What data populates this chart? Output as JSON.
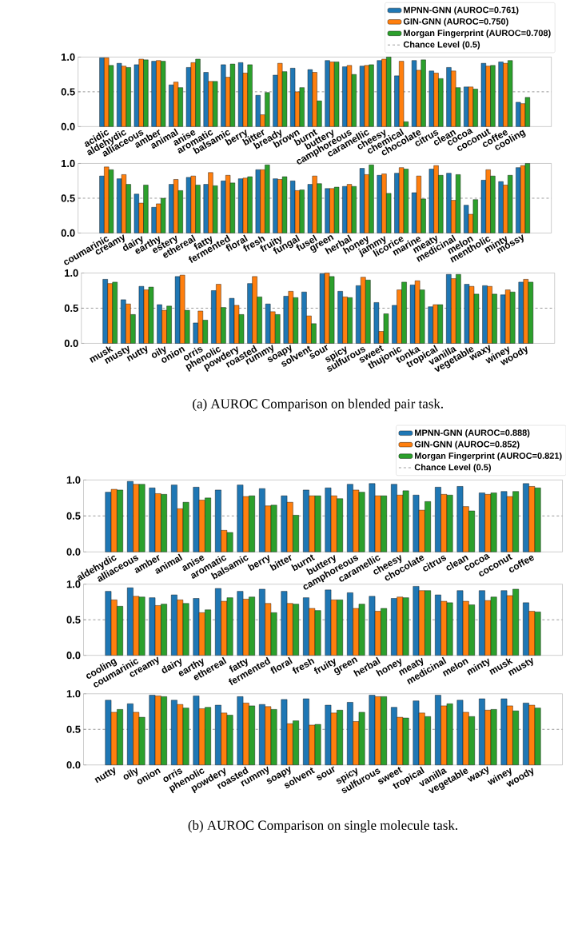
{
  "chart_data": [
    {
      "type": "bar",
      "legend": "top right",
      "categories": [
        "acidic",
        "aldehydic",
        "alliaceous",
        "amber",
        "animal",
        "anise",
        "aromatic",
        "balsamic",
        "berry",
        "bitter",
        "bready",
        "brown",
        "burnt",
        "buttery",
        "camphoreous",
        "caramellic",
        "cheesy",
        "chemical",
        "chocolate",
        "citrus",
        "clean",
        "cocoa",
        "coconut",
        "coffee",
        "cooling"
      ],
      "series": [
        {
          "name": "MPNN-GNN (AUROC=0.761)",
          "color": "#1f77b4",
          "values": [
            0.99,
            0.91,
            0.89,
            0.94,
            0.6,
            0.85,
            0.78,
            0.89,
            0.92,
            0.45,
            0.74,
            0.84,
            0.82,
            0.95,
            0.86,
            0.87,
            0.95,
            0.73,
            0.95,
            0.8,
            0.85,
            0.57,
            0.91,
            0.93,
            0.35
          ]
        },
        {
          "name": "GIN-GNN (AUROC=0.750)",
          "color": "#ff7f0e",
          "values": [
            0.99,
            0.87,
            0.97,
            0.95,
            0.64,
            0.92,
            0.65,
            0.71,
            0.77,
            0.17,
            0.91,
            0.5,
            0.78,
            0.93,
            0.88,
            0.88,
            0.97,
            0.94,
            0.81,
            0.77,
            0.8,
            0.57,
            0.87,
            0.91,
            0.33
          ]
        },
        {
          "name": "Morgan Fingerprint (AUROC=0.708)",
          "color": "#2ca02c",
          "values": [
            0.88,
            0.85,
            0.96,
            0.94,
            0.56,
            0.97,
            0.65,
            0.9,
            0.89,
            0.49,
            0.79,
            0.56,
            0.37,
            0.93,
            0.75,
            0.89,
            1.0,
            0.07,
            0.96,
            0.69,
            0.56,
            0.54,
            0.88,
            0.95,
            0.42
          ]
        }
      ],
      "ylim": [
        0,
        1
      ],
      "yticks": [
        {
          "value": 0,
          "label": "0.0"
        },
        {
          "value": 0.5,
          "label": "0.5"
        },
        {
          "value": 1,
          "label": "1.0"
        }
      ],
      "ref_lines": [
        {
          "axis": "y",
          "value": 0.5,
          "label": "Chance Level (0.5)",
          "color": "#808080",
          "line_style": "dashed"
        }
      ]
    },
    {
      "type": "bar",
      "categories": [
        "coumarinic",
        "creamy",
        "dairy",
        "earthy",
        "estery",
        "ethereal",
        "fatty",
        "fermented",
        "floral",
        "fresh",
        "fruity",
        "fungal",
        "fusel",
        "green",
        "herbal",
        "honey",
        "jammy",
        "licorice",
        "marine",
        "meaty",
        "medicinal",
        "melon",
        "mentholic",
        "minty",
        "mossy"
      ],
      "series": [
        {
          "color": "#1f77b4",
          "values": [
            0.82,
            0.78,
            0.56,
            0.37,
            0.7,
            0.8,
            0.7,
            0.75,
            0.78,
            0.91,
            0.78,
            0.75,
            0.7,
            0.64,
            0.67,
            0.93,
            0.83,
            0.86,
            0.58,
            0.92,
            0.86,
            0.4,
            0.76,
            0.74,
            0.94
          ]
        },
        {
          "color": "#ff7f0e",
          "values": [
            0.95,
            0.84,
            0.43,
            0.42,
            0.77,
            0.82,
            0.87,
            0.83,
            0.79,
            0.91,
            0.77,
            0.61,
            0.82,
            0.64,
            0.7,
            0.84,
            0.85,
            0.94,
            0.82,
            0.97,
            0.47,
            0.27,
            0.91,
            0.69,
            0.97
          ]
        },
        {
          "color": "#2ca02c",
          "values": [
            0.91,
            0.7,
            0.69,
            0.5,
            0.61,
            0.69,
            0.68,
            0.72,
            0.81,
            0.98,
            0.81,
            0.62,
            0.71,
            0.66,
            0.67,
            0.98,
            0.57,
            0.92,
            0.49,
            0.83,
            0.84,
            0.48,
            0.82,
            0.83,
            1.0
          ]
        }
      ],
      "ylim": [
        0,
        1
      ],
      "yticks": [
        {
          "value": 0,
          "label": "0.0"
        },
        {
          "value": 0.5,
          "label": "0.5"
        },
        {
          "value": 1,
          "label": "1.0"
        }
      ],
      "ref_lines": [
        {
          "axis": "y",
          "value": 0.5,
          "color": "#808080",
          "line_style": "dashed"
        }
      ]
    },
    {
      "type": "bar",
      "categories": [
        "musk",
        "musty",
        "nutty",
        "oily",
        "onion",
        "orris",
        "phenolic",
        "powdery",
        "roasted",
        "rummy",
        "soapy",
        "solvent",
        "sour",
        "spicy",
        "sulfurous",
        "sweet",
        "thujonic",
        "tonka",
        "tropical",
        "vanilla",
        "vegetable",
        "waxy",
        "winey",
        "woody"
      ],
      "series": [
        {
          "color": "#1f77b4",
          "values": [
            0.91,
            0.62,
            0.81,
            0.55,
            0.95,
            0.29,
            0.75,
            0.64,
            0.85,
            0.56,
            0.67,
            0.73,
            0.99,
            0.74,
            0.82,
            0.58,
            0.54,
            0.83,
            0.52,
            0.98,
            0.84,
            0.82,
            0.69,
            0.87
          ]
        },
        {
          "color": "#ff7f0e",
          "values": [
            0.85,
            0.56,
            0.76,
            0.47,
            0.97,
            0.46,
            0.84,
            0.54,
            0.95,
            0.45,
            0.74,
            0.39,
            1.0,
            0.66,
            0.94,
            0.17,
            0.76,
            0.89,
            0.55,
            0.92,
            0.81,
            0.81,
            0.76,
            0.91
          ]
        },
        {
          "color": "#2ca02c",
          "values": [
            0.87,
            0.41,
            0.8,
            0.53,
            0.47,
            0.33,
            0.51,
            0.41,
            0.66,
            0.41,
            0.65,
            0.28,
            0.95,
            0.65,
            0.9,
            0.42,
            0.87,
            0.76,
            0.55,
            0.98,
            0.7,
            0.7,
            0.73,
            0.87
          ]
        }
      ],
      "ylim": [
        0,
        1
      ],
      "yticks": [
        {
          "value": 0,
          "label": "0.0"
        },
        {
          "value": 0.5,
          "label": "0.5"
        },
        {
          "value": 1,
          "label": "1.0"
        }
      ],
      "ref_lines": [
        {
          "axis": "y",
          "value": 0.5,
          "color": "#808080",
          "line_style": "dashed"
        }
      ],
      "annotations": [
        "(a) AUROC Comparison on blended pair task."
      ]
    },
    {
      "type": "bar",
      "legend": "top right",
      "categories": [
        "aldehydic",
        "alliaceous",
        "amber",
        "animal",
        "anise",
        "aromatic",
        "balsamic",
        "berry",
        "bitter",
        "burnt",
        "buttery",
        "camphoreous",
        "caramellic",
        "cheesy",
        "chocolate",
        "citrus",
        "clean",
        "cocoa",
        "coconut",
        "coffee"
      ],
      "series": [
        {
          "name": "MPNN-GNN (AUROC=0.888)",
          "color": "#1f77b4",
          "values": [
            0.83,
            0.98,
            0.89,
            0.93,
            0.9,
            0.86,
            0.93,
            0.88,
            0.78,
            0.86,
            0.89,
            0.94,
            0.95,
            0.94,
            0.79,
            0.9,
            0.91,
            0.82,
            0.84,
            0.95
          ]
        },
        {
          "name": "GIN-GNN (AUROC=0.852)",
          "color": "#ff7f0e",
          "values": [
            0.87,
            0.94,
            0.81,
            0.6,
            0.72,
            0.3,
            0.77,
            0.64,
            0.69,
            0.78,
            0.78,
            0.86,
            0.78,
            0.79,
            0.58,
            0.8,
            0.63,
            0.8,
            0.77,
            0.91
          ]
        },
        {
          "name": "Morgan Fingerprint (AUROC=0.821)",
          "color": "#2ca02c",
          "values": [
            0.86,
            0.94,
            0.8,
            0.69,
            0.75,
            0.27,
            0.78,
            0.65,
            0.51,
            0.78,
            0.74,
            0.83,
            0.78,
            0.85,
            0.7,
            0.79,
            0.57,
            0.82,
            0.84,
            0.89
          ]
        }
      ],
      "ylim": [
        0,
        1
      ],
      "yticks": [
        {
          "value": 0,
          "label": "0.0"
        },
        {
          "value": 0.5,
          "label": "0.5"
        },
        {
          "value": 1,
          "label": "1.0"
        }
      ],
      "ref_lines": [
        {
          "axis": "y",
          "value": 0.5,
          "label": "Chance Level (0.5)",
          "color": "#808080",
          "line_style": "dashed"
        }
      ]
    },
    {
      "type": "bar",
      "categories": [
        "cooling",
        "coumarinic",
        "creamy",
        "dairy",
        "earthy",
        "ethereal",
        "fatty",
        "fermented",
        "floral",
        "fresh",
        "fruity",
        "green",
        "herbal",
        "honey",
        "meaty",
        "medicinal",
        "melon",
        "minty",
        "musk",
        "musty"
      ],
      "series": [
        {
          "color": "#1f77b4",
          "values": [
            0.9,
            0.95,
            0.81,
            0.85,
            0.8,
            0.94,
            0.9,
            0.93,
            0.9,
            0.81,
            0.92,
            0.88,
            0.83,
            0.8,
            0.97,
            0.85,
            0.91,
            0.91,
            0.91,
            0.74
          ]
        },
        {
          "color": "#ff7f0e",
          "values": [
            0.78,
            0.83,
            0.7,
            0.78,
            0.6,
            0.76,
            0.79,
            0.73,
            0.73,
            0.66,
            0.78,
            0.66,
            0.62,
            0.82,
            0.91,
            0.76,
            0.76,
            0.77,
            0.84,
            0.62
          ]
        },
        {
          "color": "#2ca02c",
          "values": [
            0.69,
            0.82,
            0.72,
            0.73,
            0.64,
            0.81,
            0.82,
            0.6,
            0.72,
            0.63,
            0.78,
            0.72,
            0.66,
            0.81,
            0.91,
            0.74,
            0.71,
            0.82,
            0.93,
            0.61
          ]
        }
      ],
      "ylim": [
        0,
        1
      ],
      "yticks": [
        {
          "value": 0,
          "label": "0.0"
        },
        {
          "value": 0.5,
          "label": "0.5"
        },
        {
          "value": 1,
          "label": "1.0"
        }
      ],
      "ref_lines": [
        {
          "axis": "y",
          "value": 0.5,
          "color": "#808080",
          "line_style": "dashed"
        }
      ]
    },
    {
      "type": "bar",
      "categories": [
        "nutty",
        "oily",
        "onion",
        "orris",
        "phenolic",
        "powdery",
        "roasted",
        "rummy",
        "soapy",
        "solvent",
        "sour",
        "spicy",
        "sulfurous",
        "sweet",
        "tropical",
        "vanilla",
        "vegetable",
        "waxy",
        "winey",
        "woody"
      ],
      "series": [
        {
          "color": "#1f77b4",
          "values": [
            0.91,
            0.86,
            0.98,
            0.91,
            0.97,
            0.84,
            0.96,
            0.85,
            0.92,
            0.93,
            0.84,
            0.88,
            0.98,
            0.81,
            0.9,
            0.98,
            0.91,
            0.93,
            0.93,
            0.87
          ]
        },
        {
          "color": "#ff7f0e",
          "values": [
            0.74,
            0.74,
            0.97,
            0.85,
            0.79,
            0.73,
            0.87,
            0.82,
            0.58,
            0.56,
            0.73,
            0.61,
            0.96,
            0.67,
            0.73,
            0.83,
            0.74,
            0.77,
            0.83,
            0.84
          ]
        },
        {
          "color": "#2ca02c",
          "values": [
            0.78,
            0.67,
            0.96,
            0.8,
            0.81,
            0.7,
            0.83,
            0.78,
            0.62,
            0.57,
            0.77,
            0.74,
            0.96,
            0.66,
            0.68,
            0.86,
            0.68,
            0.78,
            0.76,
            0.8
          ]
        }
      ],
      "ylim": [
        0,
        1
      ],
      "yticks": [
        {
          "value": 0,
          "label": "0.0"
        },
        {
          "value": 0.5,
          "label": "0.5"
        },
        {
          "value": 1,
          "label": "1.0"
        }
      ],
      "ref_lines": [
        {
          "axis": "y",
          "value": 0.5,
          "color": "#808080",
          "line_style": "dashed"
        }
      ],
      "annotations": [
        "(b) AUROC Comparison on single molecule task."
      ]
    }
  ]
}
